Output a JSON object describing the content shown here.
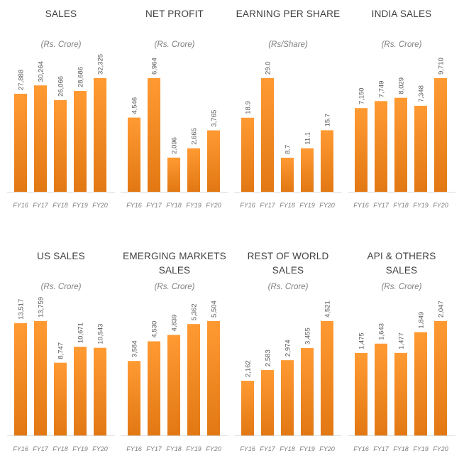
{
  "colors": {
    "bar_top": "#ff9a33",
    "bar_bottom": "#e27813",
    "axis": "#d9d9d9"
  },
  "chart_data": [
    {
      "type": "bar",
      "title": "SALES",
      "subtitle": "(Rs. Crore)",
      "categories": [
        "FY16",
        "FY17",
        "FY18",
        "FY19",
        "FY20"
      ],
      "values": [
        27888,
        30264,
        26066,
        28686,
        32325
      ],
      "labels": [
        "27,888",
        "30,264",
        "26,066",
        "28,686",
        "32,325"
      ]
    },
    {
      "type": "bar",
      "title": "NET PROFIT",
      "subtitle": "(Rs. Crore)",
      "categories": [
        "FY16",
        "FY17",
        "FY18",
        "FY19",
        "FY20"
      ],
      "values": [
        4546,
        6964,
        2096,
        2665,
        3765
      ],
      "labels": [
        "4,546",
        "6,964",
        "2,096",
        "2,665",
        "3,765"
      ]
    },
    {
      "type": "bar",
      "title": "EARNING PER SHARE",
      "subtitle": "(Rs/Share)",
      "categories": [
        "FY16",
        "FY17",
        "FY18",
        "FY19",
        "FY20"
      ],
      "values": [
        18.9,
        29.0,
        8.7,
        11.1,
        15.7
      ],
      "labels": [
        "18.9",
        "29.0",
        "8.7",
        "11.1",
        "15.7"
      ]
    },
    {
      "type": "bar",
      "title": "INDIA SALES",
      "subtitle": "(Rs. Crore)",
      "categories": [
        "FY16",
        "FY17",
        "FY18",
        "FY19",
        "FY20"
      ],
      "values": [
        7150,
        7749,
        8029,
        7348,
        9710
      ],
      "labels": [
        "7,150",
        "7,749",
        "8,029",
        "7,348",
        "9,710"
      ]
    },
    {
      "type": "bar",
      "title": "US SALES",
      "subtitle": "(Rs. Crore)",
      "categories": [
        "FY16",
        "FY17",
        "FY18",
        "FY19",
        "FY20"
      ],
      "values": [
        13517,
        13759,
        8747,
        10671,
        10543
      ],
      "labels": [
        "13,517",
        "13,759",
        "8,747",
        "10,671",
        "10,543"
      ]
    },
    {
      "type": "bar",
      "title": "EMERGING MARKETS\nSALES",
      "subtitle": "(Rs. Crore)",
      "categories": [
        "FY16",
        "FY17",
        "FY18",
        "FY19",
        "FY20"
      ],
      "values": [
        3584,
        4530,
        4839,
        5362,
        5504
      ],
      "labels": [
        "3,584",
        "4,530",
        "4,839",
        "5,362",
        "5,504"
      ]
    },
    {
      "type": "bar",
      "title": "REST OF WORLD\nSALES",
      "subtitle": "(Rs. Crore)",
      "categories": [
        "FY16",
        "FY17",
        "FY18",
        "FY19",
        "FY20"
      ],
      "values": [
        2162,
        2583,
        2974,
        3455,
        4521
      ],
      "labels": [
        "2,162",
        "2,583",
        "2,974",
        "3,455",
        "4,521"
      ]
    },
    {
      "type": "bar",
      "title": "API & OTHERS\nSALES",
      "subtitle": "(Rs. Crore)",
      "categories": [
        "FY16",
        "FY17",
        "FY18",
        "FY19",
        "FY20"
      ],
      "values": [
        1475,
        1643,
        1477,
        1849,
        2047
      ],
      "labels": [
        "1,475",
        "1,643",
        "1,477",
        "1,849",
        "2,047"
      ]
    }
  ]
}
